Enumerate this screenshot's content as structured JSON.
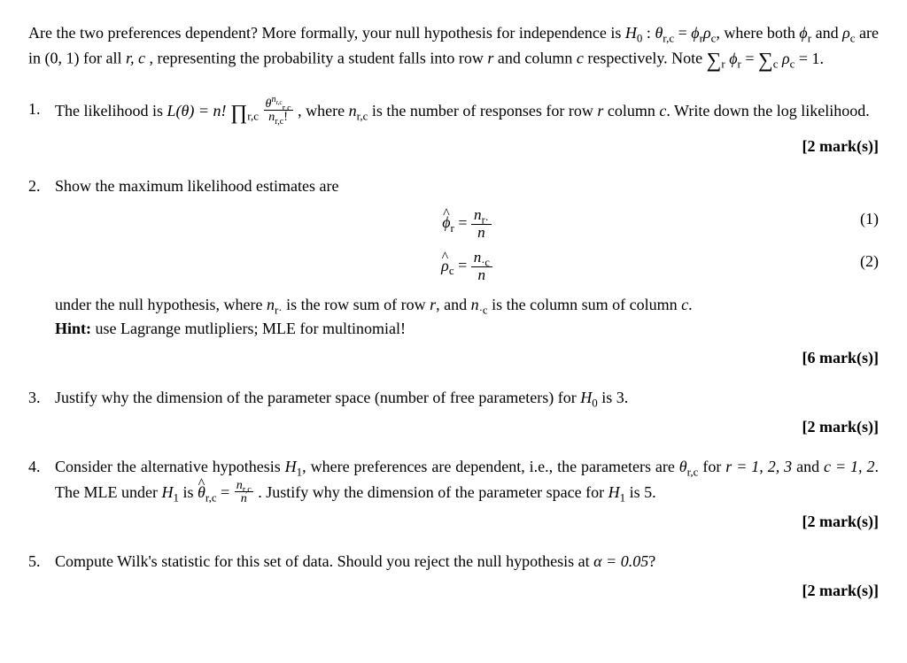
{
  "intro": {
    "line1_a": "Are the two preferences dependent? More formally, your null hypothesis for independence is ",
    "H0": "H",
    "H0sub": "0",
    "colon": " : ",
    "theta": "θ",
    "rc": "r,c",
    "eq": " = ",
    "phi": "ϕ",
    "r": "r",
    "rho": "ρ",
    "c": "c",
    "comma": ",",
    "line2_a": "where both ",
    "and": " and ",
    "line2_b": " are in (0, 1) for all ",
    "rcomma": "r, c",
    "line2_c": ", representing the probability a student falls into row ",
    "rvar": "r",
    "line2_d": " and column ",
    "cvar": "c",
    "line2_e": " respectively. Note ",
    "sum": "∑",
    "eq1": " = 1."
  },
  "q1": {
    "a": "The likelihood is ",
    "L": "L(θ) = n!",
    "prod": "∏",
    "prodsub": "r,c",
    "frac_num_a": "θ",
    "frac_num_sub": "r,c",
    "frac_num_sup": "n",
    "frac_num_supsub": "r,c",
    "frac_den_a": "n",
    "frac_den_sub": "r,c",
    "frac_den_b": "!",
    "b": ", where ",
    "nrc": "n",
    "nrc_sub": "r,c",
    "c": " is the number of responses for row ",
    "rvar": "r",
    "d": " column ",
    "cvar": "c",
    "e": ". Write down the log likelihood.",
    "marks": "[2 mark(s)]"
  },
  "q2": {
    "a": "Show the maximum likelihood estimates are",
    "eq1_lhs_sym": "ϕ",
    "eq1_lhs_sub": "r",
    "eq1_eq": " = ",
    "eq1_num": "n",
    "eq1_num_sub": "r·",
    "eq1_den": "n",
    "eq1_tag": "(1)",
    "eq2_lhs_sym": "ρ",
    "eq2_lhs_sub": "c",
    "eq2_eq": " = ",
    "eq2_num": "n",
    "eq2_num_sub": "·c",
    "eq2_den": "n",
    "eq2_tag": "(2)",
    "b1": "under the null hypothesis, where ",
    "nr": "n",
    "nr_sub": "r·",
    "b2": " is the row sum of row ",
    "rvar": "r",
    "b3": ", and ",
    "nc": "n",
    "nc_sub": "·c",
    "b4": " is the column sum of column ",
    "cvar": "c",
    "b5": ".",
    "hint_label": "Hint:",
    "hint_text": "   use Lagrange mutlipliers; MLE for multinomial!",
    "marks": "[6 mark(s)]"
  },
  "q3": {
    "a": "Justify why the dimension of the parameter space (number of free parameters) for ",
    "H0": "H",
    "H0sub": "0",
    "b": " is 3.",
    "marks": "[2 mark(s)]"
  },
  "q4": {
    "a": "Consider the alternative hypothesis ",
    "H1": "H",
    "H1sub": "1",
    "b": ", where preferences are dependent, i.e., the parameters are ",
    "theta": "θ",
    "rc": "r,c",
    "c": " for ",
    "rvals": "r = 1, 2, 3",
    "d": " and ",
    "cvals": "c = 1, 2",
    "e": ". The MLE under ",
    "f": " is ",
    "mle_lhs_sym": "θ",
    "mle_lhs_sub": "r,c",
    "mle_eq": " = ",
    "mle_num": "n",
    "mle_num_sub": "r,c",
    "mle_den": "n",
    "g": ". Justify why the dimension of the parameter space for ",
    "h": " is 5.",
    "marks": "[2 mark(s)]"
  },
  "q5": {
    "a": "Compute Wilk's statistic for this set of data. Should you reject the null hypothesis at ",
    "alpha": "α = 0.05",
    "b": "?",
    "marks": "[2 mark(s)]"
  }
}
